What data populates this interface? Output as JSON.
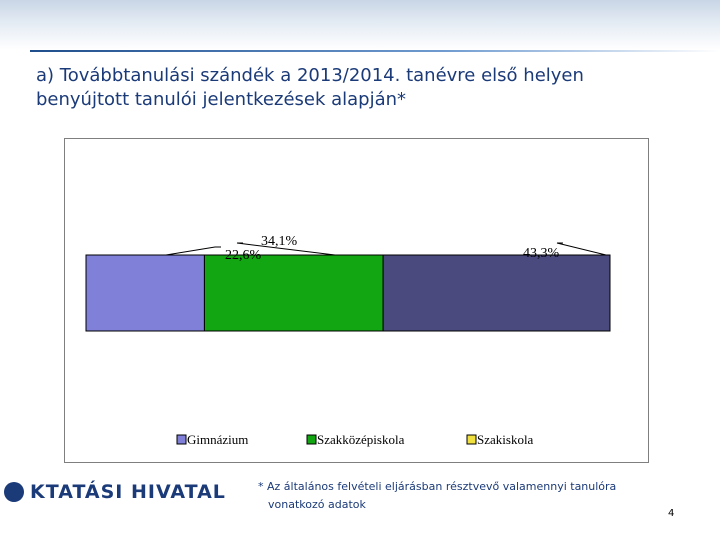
{
  "slide": {
    "title_line1": "a)   Továbbtanulási szándék a 2013/2014. tanévre első helyen",
    "title_line2": "benyújtott tanulói jelentkezések alapján*",
    "footnote_line1": "* Az általános felvételi eljárásban résztvevő valamennyi tanulóra",
    "footnote_line2": "vonatkozó adatok",
    "logo_text": "KTATÁSI HIVATAL",
    "page_number": "4"
  },
  "colors": {
    "title": "#1b3a78",
    "logo": "#1b3a78"
  },
  "chart_data": {
    "type": "bar",
    "orientation": "horizontal-stacked-100",
    "categories": [
      ""
    ],
    "series": [
      {
        "name": "Gimnázium",
        "values": [
          22.6
        ],
        "label": "22,6%",
        "color": "#8080d8"
      },
      {
        "name": "Szakközépiskola",
        "values": [
          34.1
        ],
        "label": "34,1%",
        "color": "#12a612"
      },
      {
        "name": "Szakiskola",
        "values": [
          43.3
        ],
        "label": "43,3%",
        "color": "#4a4a7e"
      }
    ],
    "title": "",
    "xlabel": "",
    "ylabel": "",
    "xlim": [
      0,
      100
    ],
    "grid": false,
    "legend": "bottom"
  }
}
